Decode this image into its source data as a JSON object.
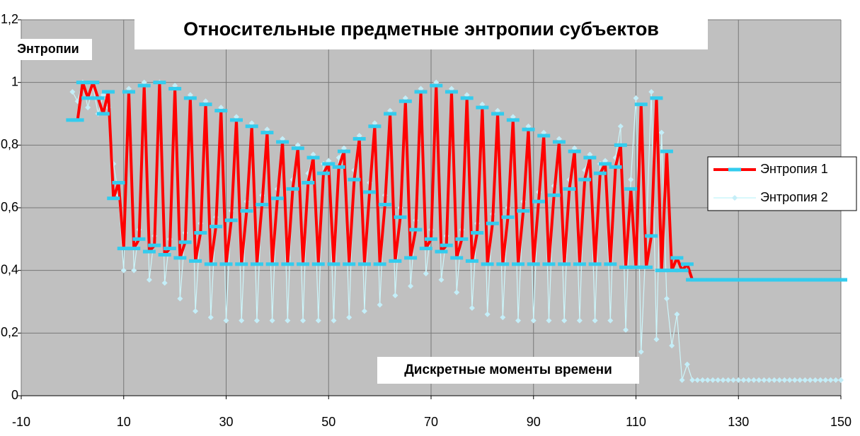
{
  "chart_data": {
    "type": "line",
    "title": "Относительные предметные энтропии субъектов",
    "y_label": "Энтропии",
    "x_label": "Дискретные моменты времени",
    "x": [
      0,
      1,
      2,
      3,
      4,
      5,
      6,
      7,
      8,
      9,
      10,
      11,
      12,
      13,
      14,
      15,
      16,
      17,
      18,
      19,
      20,
      21,
      22,
      23,
      24,
      25,
      26,
      27,
      28,
      29,
      30,
      31,
      32,
      33,
      34,
      35,
      36,
      37,
      38,
      39,
      40,
      41,
      42,
      43,
      44,
      45,
      46,
      47,
      48,
      49,
      50,
      51,
      52,
      53,
      54,
      55,
      56,
      57,
      58,
      59,
      60,
      61,
      62,
      63,
      64,
      65,
      66,
      67,
      68,
      69,
      70,
      71,
      72,
      73,
      74,
      75,
      76,
      77,
      78,
      79,
      80,
      81,
      82,
      83,
      84,
      85,
      86,
      87,
      88,
      89,
      90,
      91,
      92,
      93,
      94,
      95,
      96,
      97,
      98,
      99,
      100,
      101,
      102,
      103,
      104,
      105,
      106,
      107,
      108,
      109,
      110,
      111,
      112,
      113,
      114,
      115,
      116,
      117,
      118,
      119,
      120,
      121,
      122,
      123,
      124,
      125,
      126,
      127,
      128,
      129,
      130,
      131,
      132,
      133,
      134,
      135,
      136,
      137,
      138,
      139,
      140,
      141,
      142,
      143,
      144,
      145,
      146,
      147,
      148,
      149,
      150
    ],
    "series": [
      {
        "name": "Энтропия 1",
        "color": "#ff0000",
        "marker_color": "#33ccee",
        "marker": "dash",
        "values": [
          0.88,
          0.88,
          1.0,
          0.95,
          1.0,
          0.95,
          0.9,
          0.97,
          0.63,
          0.68,
          0.47,
          0.97,
          0.47,
          0.5,
          0.99,
          0.46,
          0.48,
          1.0,
          0.45,
          0.47,
          0.98,
          0.44,
          0.49,
          0.95,
          0.43,
          0.52,
          0.93,
          0.42,
          0.54,
          0.91,
          0.42,
          0.56,
          0.88,
          0.42,
          0.59,
          0.86,
          0.42,
          0.61,
          0.84,
          0.42,
          0.63,
          0.81,
          0.42,
          0.66,
          0.79,
          0.42,
          0.68,
          0.76,
          0.42,
          0.71,
          0.74,
          0.42,
          0.73,
          0.78,
          0.42,
          0.69,
          0.82,
          0.42,
          0.65,
          0.86,
          0.42,
          0.61,
          0.9,
          0.43,
          0.57,
          0.94,
          0.44,
          0.53,
          0.97,
          0.47,
          0.5,
          0.99,
          0.46,
          0.48,
          0.97,
          0.44,
          0.5,
          0.95,
          0.43,
          0.52,
          0.92,
          0.42,
          0.55,
          0.9,
          0.42,
          0.57,
          0.88,
          0.42,
          0.59,
          0.85,
          0.42,
          0.62,
          0.83,
          0.42,
          0.64,
          0.81,
          0.42,
          0.66,
          0.78,
          0.42,
          0.69,
          0.76,
          0.42,
          0.71,
          0.74,
          0.42,
          0.73,
          0.8,
          0.41,
          0.66,
          0.41,
          0.93,
          0.41,
          0.51,
          0.95,
          0.4,
          0.78,
          0.4,
          0.44,
          0.4,
          0.42,
          0.37,
          0.37,
          0.37,
          0.37,
          0.37,
          0.37,
          0.37,
          0.37,
          0.37,
          0.37,
          0.37,
          0.37,
          0.37,
          0.37,
          0.37,
          0.37,
          0.37,
          0.37,
          0.37,
          0.37,
          0.37,
          0.37,
          0.37,
          0.37,
          0.37,
          0.37,
          0.37,
          0.37,
          0.37,
          0.37
        ]
      },
      {
        "name": "Энтропия 2",
        "color": "#ccf6fb",
        "marker_color": "#c4eef8",
        "marker": "diamond",
        "values": [
          0.97,
          0.94,
          1.0,
          0.92,
          0.99,
          0.9,
          0.96,
          0.92,
          0.74,
          0.64,
          0.4,
          0.98,
          0.4,
          0.53,
          1.0,
          0.37,
          0.51,
          1.0,
          0.36,
          0.5,
          0.99,
          0.31,
          0.52,
          0.96,
          0.27,
          0.55,
          0.94,
          0.25,
          0.57,
          0.92,
          0.24,
          0.59,
          0.89,
          0.24,
          0.62,
          0.87,
          0.24,
          0.64,
          0.85,
          0.24,
          0.66,
          0.82,
          0.24,
          0.69,
          0.8,
          0.24,
          0.71,
          0.77,
          0.24,
          0.74,
          0.75,
          0.24,
          0.76,
          0.79,
          0.25,
          0.72,
          0.83,
          0.27,
          0.68,
          0.87,
          0.29,
          0.64,
          0.91,
          0.32,
          0.6,
          0.95,
          0.35,
          0.56,
          0.98,
          0.39,
          0.53,
          1.0,
          0.37,
          0.51,
          0.98,
          0.33,
          0.53,
          0.96,
          0.28,
          0.55,
          0.93,
          0.26,
          0.58,
          0.91,
          0.25,
          0.6,
          0.89,
          0.24,
          0.62,
          0.86,
          0.24,
          0.65,
          0.84,
          0.24,
          0.67,
          0.82,
          0.24,
          0.69,
          0.79,
          0.24,
          0.72,
          0.77,
          0.24,
          0.74,
          0.75,
          0.24,
          0.76,
          0.86,
          0.21,
          0.69,
          0.95,
          0.14,
          0.51,
          0.97,
          0.18,
          0.84,
          0.31,
          0.16,
          0.26,
          0.05,
          0.1,
          0.05,
          0.05,
          0.05,
          0.05,
          0.05,
          0.05,
          0.05,
          0.05,
          0.05,
          0.05,
          0.05,
          0.05,
          0.05,
          0.05,
          0.05,
          0.05,
          0.05,
          0.05,
          0.05,
          0.05,
          0.05,
          0.05,
          0.05,
          0.05,
          0.05,
          0.05,
          0.05,
          0.05,
          0.05,
          0.05
        ]
      }
    ],
    "xlim": [
      -10,
      150
    ],
    "xticks": [
      -10,
      10,
      30,
      50,
      70,
      90,
      110,
      130,
      150
    ],
    "ylim": [
      0,
      1.2
    ],
    "yticks": [
      0,
      {
        "value": 0.2,
        "label": "0,2"
      },
      {
        "value": 0.4,
        "label": "0,4"
      },
      {
        "value": 0.6,
        "label": "0,6"
      },
      {
        "value": 0.8,
        "label": "0,8"
      },
      1,
      {
        "value": 1.2,
        "label": "1,2"
      }
    ],
    "grid": true,
    "plot_background": "#c0c0c0",
    "legend": "right"
  }
}
